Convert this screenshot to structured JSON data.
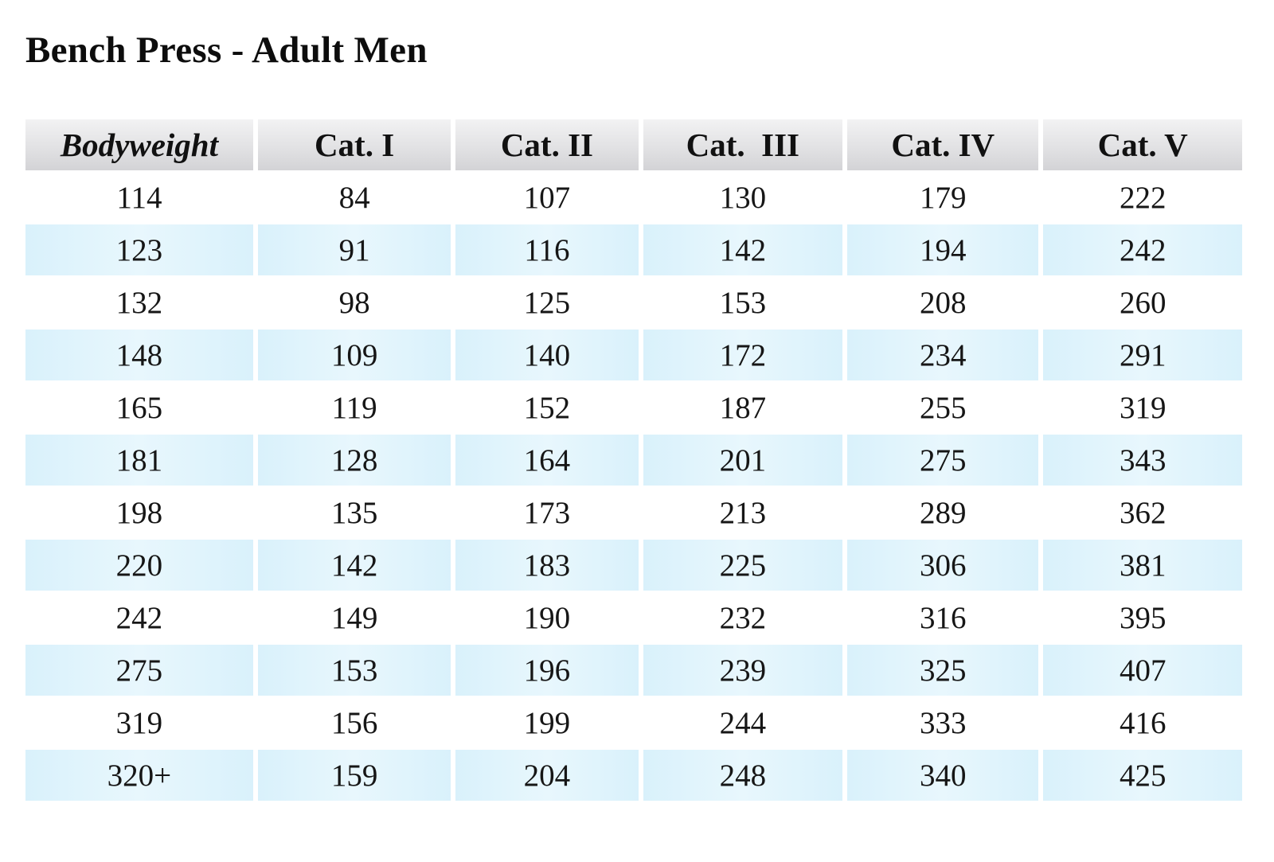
{
  "title": "Bench Press - Adult Men",
  "table": {
    "headers": [
      "Bodyweight",
      "Cat. I",
      "Cat. II",
      "Cat.  III",
      "Cat. IV",
      "Cat. V"
    ],
    "rows": [
      [
        "114",
        "84",
        "107",
        "130",
        "179",
        "222"
      ],
      [
        "123",
        "91",
        "116",
        "142",
        "194",
        "242"
      ],
      [
        "132",
        "98",
        "125",
        "153",
        "208",
        "260"
      ],
      [
        "148",
        "109",
        "140",
        "172",
        "234",
        "291"
      ],
      [
        "165",
        "119",
        "152",
        "187",
        "255",
        "319"
      ],
      [
        "181",
        "128",
        "164",
        "201",
        "275",
        "343"
      ],
      [
        "198",
        "135",
        "173",
        "213",
        "289",
        "362"
      ],
      [
        "220",
        "142",
        "183",
        "225",
        "306",
        "381"
      ],
      [
        "242",
        "149",
        "190",
        "232",
        "316",
        "395"
      ],
      [
        "275",
        "153",
        "196",
        "239",
        "325",
        "407"
      ],
      [
        "319",
        "156",
        "199",
        "244",
        "333",
        "416"
      ],
      [
        "320+",
        "159",
        "204",
        "248",
        "340",
        "425"
      ]
    ]
  },
  "colors": {
    "header_bg": "#e2e2e4",
    "stripe_bg": "#dff3fb",
    "text": "#111111"
  }
}
